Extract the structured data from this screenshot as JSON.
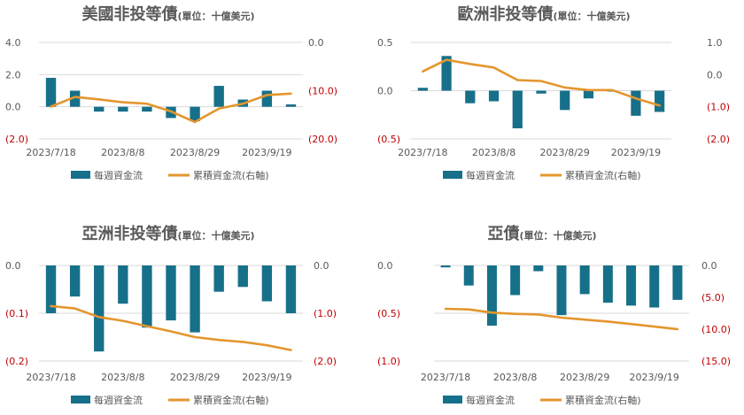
{
  "legend": {
    "bar_label": "每週資金流",
    "line_label": "累積資金流(右軸)"
  },
  "colors": {
    "bar": "#17708a",
    "line": "#e4962e",
    "negative_tick": "#c00000",
    "grid": "#d9d9d9",
    "text": "#595959"
  },
  "chart_data": [
    {
      "type": "bar+line",
      "title": "美國非投等債",
      "subtitle": "(單位：十億美元)",
      "x_tick_labels": [
        "2023/7/18",
        "2023/8/8",
        "2023/8/29",
        "2023/9/19"
      ],
      "left_ticks": [
        "4.0",
        "2.0",
        "0.0",
        "(2.0)"
      ],
      "right_ticks": [
        "0.0",
        "(10.0)",
        "(20.0)"
      ],
      "left_ylim": [
        -2,
        4
      ],
      "right_ylim": [
        -20,
        0
      ],
      "grid": true,
      "legend_position": "bottom",
      "weekly_flows": [
        1.8,
        1.0,
        -0.3,
        -0.3,
        -0.3,
        -0.7,
        -0.9,
        1.3,
        0.45,
        1.0,
        0.15
      ],
      "cumulative_flows": [
        -13.3,
        -11.3,
        -11.8,
        -12.4,
        -12.7,
        -14.3,
        -16.5,
        -13.7,
        -12.7,
        -10.9,
        -10.6
      ]
    },
    {
      "type": "bar+line",
      "title": "歐洲非投等債",
      "subtitle": "(單位：十億美元)",
      "x_tick_labels": [
        "2023/7/18",
        "2023/8/8",
        "2023/8/29",
        "2023/9/19"
      ],
      "left_ticks": [
        "0.5",
        "0.0",
        "(0.5)"
      ],
      "right_ticks": [
        "1.0",
        "0.0",
        "(1.0)",
        "(2.0)"
      ],
      "left_ylim": [
        -0.5,
        0.5
      ],
      "right_ylim": [
        -2,
        1
      ],
      "grid": true,
      "legend_position": "bottom",
      "weekly_flows": [
        0.03,
        0.36,
        -0.13,
        -0.11,
        -0.39,
        -0.03,
        -0.2,
        -0.08,
        0.0,
        -0.26,
        -0.22
      ],
      "cumulative_flows": [
        0.1,
        0.46,
        0.33,
        0.22,
        -0.17,
        -0.2,
        -0.4,
        -0.48,
        -0.48,
        -0.74,
        -0.96
      ]
    },
    {
      "type": "bar+line",
      "title": "亞洲非投等債",
      "subtitle": "(單位：十億美元)",
      "x_tick_labels": [
        "2023/7/18",
        "2023/8/8",
        "2023/8/29",
        "2023/9/19"
      ],
      "left_ticks": [
        "0.0",
        "(0.1)",
        "(0.2)"
      ],
      "right_ticks": [
        "0.0",
        "(1.0)",
        "(2.0)"
      ],
      "left_ylim": [
        -0.2,
        0
      ],
      "right_ylim": [
        -2,
        0
      ],
      "grid": true,
      "legend_position": "bottom",
      "weekly_flows": [
        -0.1,
        -0.065,
        -0.18,
        -0.08,
        -0.13,
        -0.115,
        -0.14,
        -0.055,
        -0.045,
        -0.075,
        -0.1
      ],
      "cumulative_flows": [
        -0.85,
        -0.9,
        -1.08,
        -1.16,
        -1.27,
        -1.38,
        -1.5,
        -1.56,
        -1.6,
        -1.67,
        -1.77
      ]
    },
    {
      "type": "bar+line",
      "title": "亞債",
      "subtitle": "(單位：十億美元)",
      "x_tick_labels": [
        "2023/7/18",
        "2023/8/8",
        "2023/8/29",
        "2023/9/19"
      ],
      "left_ticks": [
        "0.0",
        "(0.5)",
        "(1.0)"
      ],
      "right_ticks": [
        "0.0",
        "(5.0)",
        "(10.0)",
        "(15.0)"
      ],
      "left_ylim": [
        -1,
        0
      ],
      "right_ylim": [
        -15,
        0
      ],
      "grid": true,
      "legend_position": "bottom",
      "weekly_flows": [
        -0.02,
        -0.21,
        -0.63,
        -0.31,
        -0.06,
        -0.52,
        -0.3,
        -0.39,
        -0.42,
        -0.44,
        -0.36
      ],
      "cumulative_flows": [
        -6.8,
        -6.9,
        -7.4,
        -7.6,
        -7.7,
        -8.2,
        -8.5,
        -8.8,
        -9.2,
        -9.6,
        -10.0
      ]
    }
  ]
}
